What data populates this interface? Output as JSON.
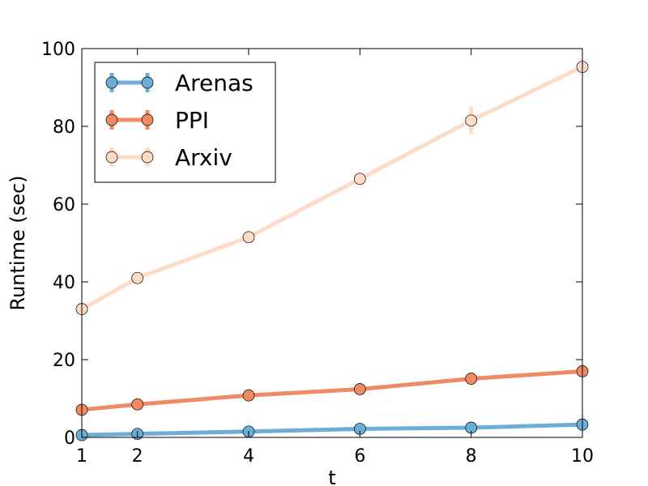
{
  "chart_data": {
    "type": "line",
    "title": "",
    "xlabel": "t",
    "ylabel": "Runtime (sec)",
    "x": [
      1,
      2,
      4,
      6,
      8,
      10
    ],
    "x_ticks": [
      1,
      2,
      4,
      6,
      8,
      10
    ],
    "y_ticks": [
      0,
      20,
      40,
      60,
      80,
      100
    ],
    "xlim": [
      1,
      10
    ],
    "ylim": [
      0,
      100
    ],
    "grid": false,
    "legend_position": "top-left",
    "series": [
      {
        "name": "Arenas",
        "color": "#6baed6",
        "values": [
          0.6,
          0.9,
          1.5,
          2.2,
          2.5,
          3.3
        ],
        "errors": [
          0.2,
          0.2,
          0.2,
          0.3,
          0.3,
          0.3
        ]
      },
      {
        "name": "PPI",
        "color": "#ef8a62",
        "values": [
          7.1,
          8.5,
          10.8,
          12.4,
          15.1,
          17.0
        ],
        "errors": [
          0.4,
          0.4,
          0.4,
          0.5,
          0.6,
          0.6
        ]
      },
      {
        "name": "Arxiv",
        "color": "#fddbc7",
        "values": [
          33.0,
          41.0,
          51.5,
          66.5,
          81.5,
          95.3
        ],
        "errors": [
          0.8,
          0.8,
          1.0,
          1.2,
          3.5,
          1.2
        ]
      }
    ]
  }
}
